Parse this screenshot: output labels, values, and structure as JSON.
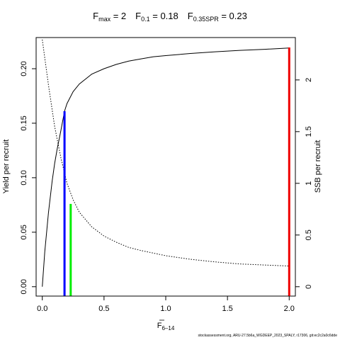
{
  "chart_data": {
    "type": "line",
    "title_parts": [
      {
        "base": "F",
        "sub": "max",
        "rest": " = 2"
      },
      {
        "base": "F",
        "sub": "0.1",
        "rest": " = 0.18"
      },
      {
        "base": "F",
        "sub": "0.35SPR",
        "rest": " = 0.23"
      }
    ],
    "xlabel": {
      "base": "F",
      "sub": "6–14"
    },
    "ylabel": "Yield per recruit",
    "y2label": "SSB per recruit",
    "xlim": [
      -0.05,
      2.05
    ],
    "ylim": [
      -0.0086,
      0.2286
    ],
    "y2lim": [
      -0.0906,
      2.41
    ],
    "x_ticks": [
      {
        "value": 0,
        "label": "0.0"
      },
      {
        "value": 0.5,
        "label": "0.5"
      },
      {
        "value": 1.0,
        "label": "1.0"
      },
      {
        "value": 1.5,
        "label": "1.5"
      },
      {
        "value": 2.0,
        "label": "2.0"
      }
    ],
    "y_ticks": [
      {
        "value": 0,
        "label": "0.00"
      },
      {
        "value": 0.05,
        "label": "0.05"
      },
      {
        "value": 0.1,
        "label": "0.10"
      },
      {
        "value": 0.15,
        "label": "0.15"
      },
      {
        "value": 0.2,
        "label": "0.20"
      }
    ],
    "y2_ticks": [
      {
        "value": 0,
        "label": "0"
      },
      {
        "value": 0.5,
        "label": "0.5"
      },
      {
        "value": 1,
        "label": "1"
      },
      {
        "value": 1.5,
        "label": "1.5"
      },
      {
        "value": 2,
        "label": "2"
      }
    ],
    "series": [
      {
        "axis": "left",
        "style": "solid",
        "x": [
          0,
          0.02,
          0.05,
          0.08,
          0.1,
          0.12,
          0.15,
          0.18,
          0.2,
          0.25,
          0.3,
          0.4,
          0.5,
          0.6,
          0.7,
          0.8,
          0.9,
          1.0,
          1.2,
          1.4,
          1.6,
          1.8,
          2.0
        ],
        "y": [
          0.0,
          0.032,
          0.068,
          0.097,
          0.113,
          0.126,
          0.143,
          0.161,
          0.168,
          0.179,
          0.186,
          0.195,
          0.2,
          0.204,
          0.207,
          0.209,
          0.211,
          0.212,
          0.214,
          0.2155,
          0.2168,
          0.2178,
          0.219
        ]
      },
      {
        "axis": "right",
        "style": "dotted",
        "x": [
          0,
          0.05,
          0.1,
          0.15,
          0.2,
          0.25,
          0.3,
          0.4,
          0.5,
          0.6,
          0.7,
          0.8,
          1.0,
          1.2,
          1.4,
          1.6,
          1.8,
          2.0
        ],
        "y": [
          2.39,
          1.95,
          1.55,
          1.25,
          1.0,
          0.84,
          0.72,
          0.58,
          0.49,
          0.43,
          0.38,
          0.35,
          0.3,
          0.265,
          0.24,
          0.22,
          0.21,
          0.2
        ]
      }
    ],
    "reference_lines": [
      {
        "name": "F0.1",
        "x": 0.18,
        "y_top": 0.161,
        "color": "#0000ff"
      },
      {
        "name": "F0.35SPR",
        "x": 0.23,
        "y_top": 0.076,
        "color": "#00ee00"
      },
      {
        "name": "Fmax",
        "x": 2.0,
        "y_top": 0.2195,
        "color": "#ee0000"
      }
    ],
    "grid": false,
    "legend": "none"
  },
  "footer": "stockassessment.org, ARU-27.5b6a_WGDEEP_2023_SPALY, r17306, git:ec2c2a0c6dde"
}
